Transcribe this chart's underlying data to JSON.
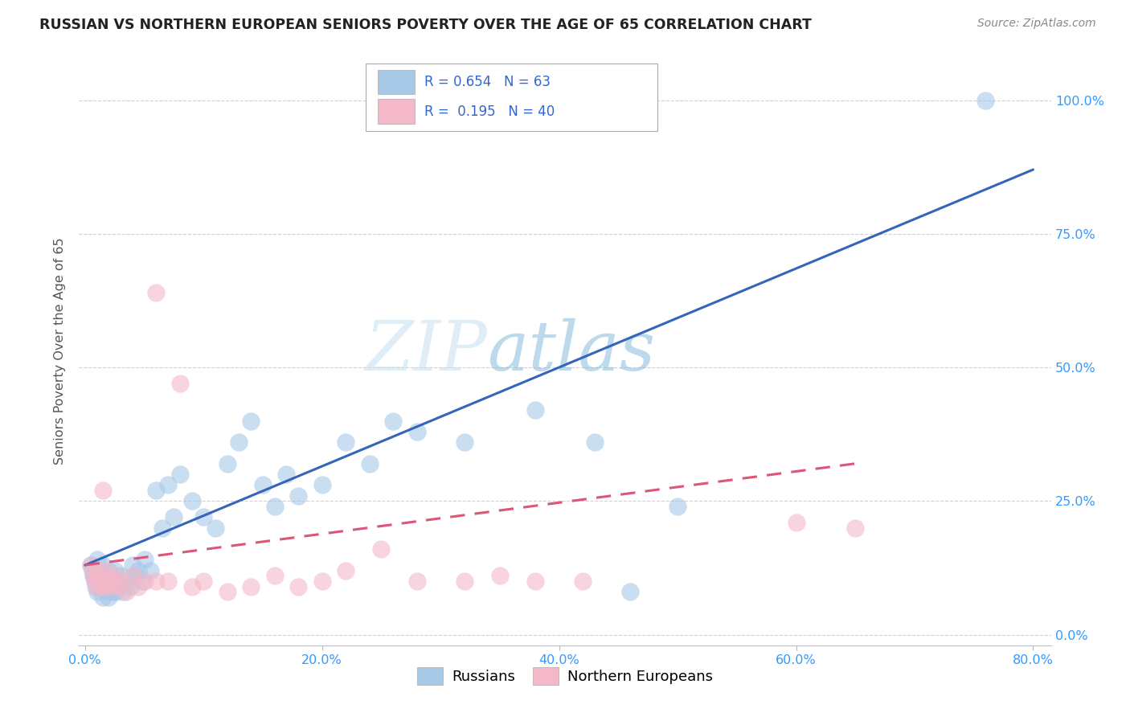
{
  "title": "RUSSIAN VS NORTHERN EUROPEAN SENIORS POVERTY OVER THE AGE OF 65 CORRELATION CHART",
  "source": "Source: ZipAtlas.com",
  "xlabel_ticks": [
    "0.0%",
    "20.0%",
    "40.0%",
    "60.0%",
    "80.0%"
  ],
  "ylabel_ticks": [
    "0.0%",
    "25.0%",
    "50.0%",
    "75.0%",
    "100.0%"
  ],
  "xlim": [
    -0.005,
    0.815
  ],
  "ylim": [
    -0.02,
    1.08
  ],
  "ylabel": "Seniors Poverty Over the Age of 65",
  "legend_labels": [
    "Russians",
    "Northern Europeans"
  ],
  "blue_color": "#a8c8e8",
  "pink_color": "#f4b8c8",
  "blue_line_color": "#3366bb",
  "pink_line_color": "#dd5577",
  "watermark_zip": "ZIP",
  "watermark_atlas": "atlas",
  "russians_x": [
    0.005,
    0.006,
    0.007,
    0.008,
    0.009,
    0.01,
    0.01,
    0.011,
    0.012,
    0.013,
    0.014,
    0.015,
    0.015,
    0.016,
    0.017,
    0.018,
    0.019,
    0.02,
    0.02,
    0.021,
    0.022,
    0.023,
    0.024,
    0.025,
    0.026,
    0.027,
    0.028,
    0.03,
    0.032,
    0.035,
    0.038,
    0.04,
    0.042,
    0.045,
    0.048,
    0.05,
    0.055,
    0.06,
    0.065,
    0.07,
    0.075,
    0.08,
    0.09,
    0.1,
    0.11,
    0.12,
    0.13,
    0.14,
    0.15,
    0.16,
    0.17,
    0.18,
    0.2,
    0.22,
    0.24,
    0.26,
    0.28,
    0.32,
    0.38,
    0.43,
    0.46,
    0.5,
    0.76
  ],
  "russians_y": [
    0.13,
    0.12,
    0.11,
    0.1,
    0.09,
    0.14,
    0.08,
    0.12,
    0.1,
    0.11,
    0.09,
    0.13,
    0.07,
    0.11,
    0.09,
    0.1,
    0.08,
    0.12,
    0.07,
    0.09,
    0.1,
    0.08,
    0.09,
    0.12,
    0.08,
    0.1,
    0.09,
    0.11,
    0.08,
    0.1,
    0.09,
    0.13,
    0.11,
    0.12,
    0.1,
    0.14,
    0.12,
    0.27,
    0.2,
    0.28,
    0.22,
    0.3,
    0.25,
    0.22,
    0.2,
    0.32,
    0.36,
    0.4,
    0.28,
    0.24,
    0.3,
    0.26,
    0.28,
    0.36,
    0.32,
    0.4,
    0.38,
    0.36,
    0.42,
    0.36,
    0.08,
    0.24,
    1.0
  ],
  "northern_x": [
    0.005,
    0.007,
    0.008,
    0.01,
    0.01,
    0.012,
    0.013,
    0.015,
    0.015,
    0.017,
    0.018,
    0.02,
    0.022,
    0.025,
    0.028,
    0.03,
    0.035,
    0.04,
    0.045,
    0.05,
    0.06,
    0.06,
    0.07,
    0.08,
    0.09,
    0.1,
    0.12,
    0.14,
    0.16,
    0.18,
    0.2,
    0.22,
    0.25,
    0.28,
    0.32,
    0.35,
    0.38,
    0.42,
    0.6,
    0.65
  ],
  "northern_y": [
    0.13,
    0.11,
    0.1,
    0.12,
    0.09,
    0.11,
    0.1,
    0.27,
    0.09,
    0.12,
    0.1,
    0.09,
    0.1,
    0.11,
    0.09,
    0.1,
    0.08,
    0.11,
    0.09,
    0.1,
    0.64,
    0.1,
    0.1,
    0.47,
    0.09,
    0.1,
    0.08,
    0.09,
    0.11,
    0.09,
    0.1,
    0.12,
    0.16,
    0.1,
    0.1,
    0.11,
    0.1,
    0.1,
    0.21,
    0.2
  ],
  "blue_line_x0": 0.0,
  "blue_line_y0": 0.13,
  "blue_line_x1": 0.8,
  "blue_line_y1": 0.87,
  "pink_line_x0": 0.0,
  "pink_line_y0": 0.13,
  "pink_line_x1": 0.65,
  "pink_line_y1": 0.32
}
